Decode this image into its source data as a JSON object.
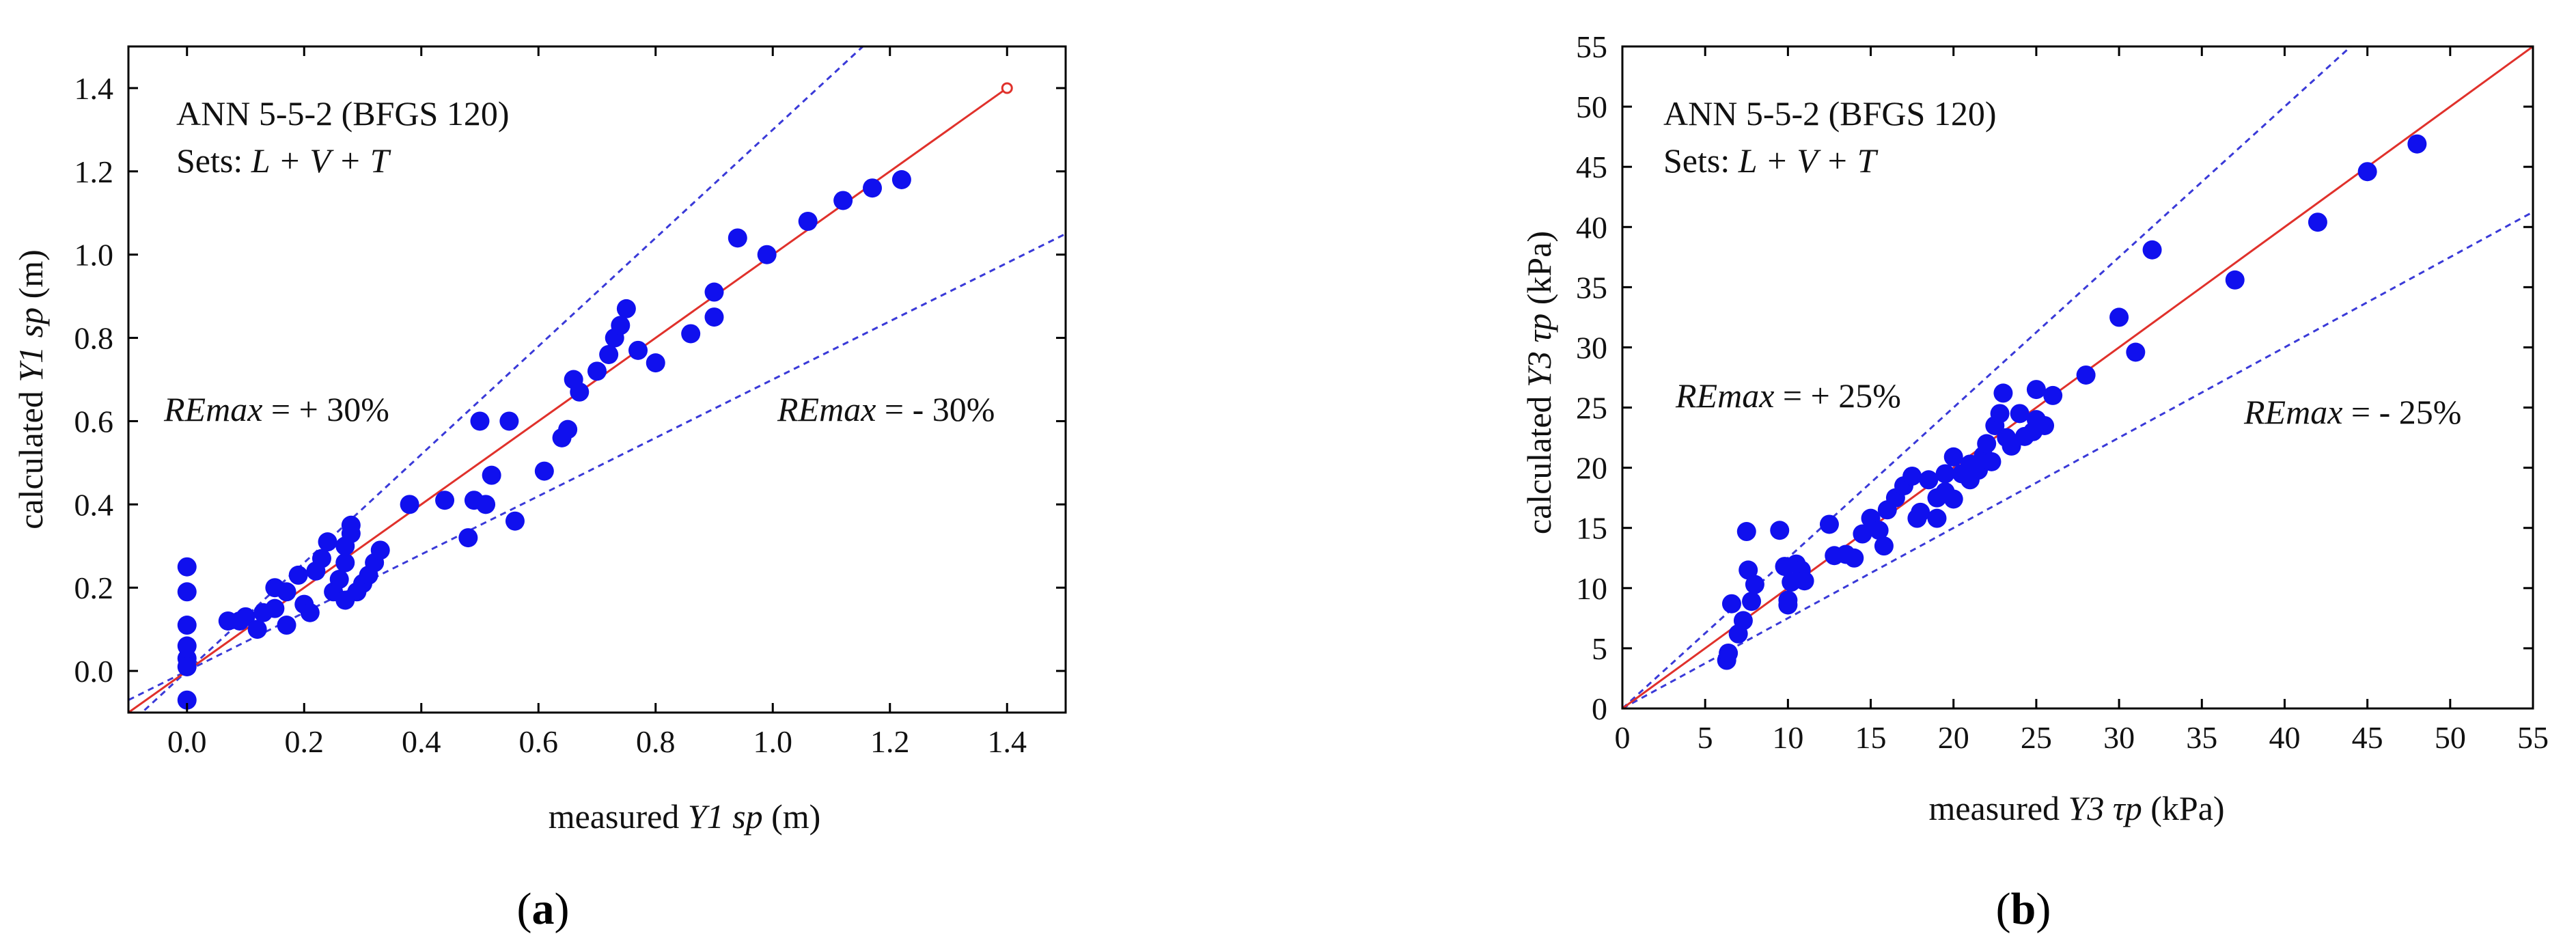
{
  "chart_data": [
    {
      "type": "scatter",
      "panel_label": "a",
      "title": "",
      "annotation": {
        "model": "ANN 5-5-2 (BFGS 120)",
        "sets_prefix": "Sets: ",
        "sets_value": "L + V + T"
      },
      "xlabel": {
        "prefix": "measured ",
        "var": "Y1 sp",
        "unit": " (m)"
      },
      "ylabel": {
        "prefix": "calculated ",
        "var": "Y1 sp",
        "unit": " (m)"
      },
      "xlim": [
        -0.1,
        1.5
      ],
      "ylim": [
        -0.1,
        1.5
      ],
      "xticks": [
        0.0,
        0.2,
        0.4,
        0.6,
        0.8,
        1.0,
        1.2,
        1.4
      ],
      "xtick_labels": [
        "0.0",
        "0.2",
        "0.4",
        "0.6",
        "0.8",
        "1.0",
        "1.2",
        "1.4"
      ],
      "yticks": [
        0.0,
        0.2,
        0.4,
        0.6,
        0.8,
        1.0,
        1.2,
        1.4
      ],
      "ytick_labels": [
        "0.0",
        "0.2",
        "0.4",
        "0.6",
        "0.8",
        "1.0",
        "1.2",
        "1.4"
      ],
      "ideal_line": {
        "from": [
          -0.1,
          -0.1
        ],
        "to": [
          1.4,
          1.4
        ]
      },
      "bounds": {
        "upper_factor": 1.3,
        "lower_factor": 0.7
      },
      "re_labels": {
        "upper": {
          "name": "REmax",
          "value": " = + 30%"
        },
        "lower": {
          "name": "REmax",
          "value": " = - 30%"
        }
      },
      "points": [
        [
          0.0,
          0.25
        ],
        [
          0.0,
          0.19
        ],
        [
          0.0,
          0.11
        ],
        [
          0.0,
          0.06
        ],
        [
          0.0,
          0.03
        ],
        [
          0.0,
          0.01
        ],
        [
          0.0,
          -0.07
        ],
        [
          0.07,
          0.12
        ],
        [
          0.09,
          0.12
        ],
        [
          0.1,
          0.13
        ],
        [
          0.12,
          0.1
        ],
        [
          0.13,
          0.14
        ],
        [
          0.15,
          0.15
        ],
        [
          0.15,
          0.2
        ],
        [
          0.17,
          0.19
        ],
        [
          0.17,
          0.11
        ],
        [
          0.19,
          0.23
        ],
        [
          0.2,
          0.16
        ],
        [
          0.21,
          0.14
        ],
        [
          0.22,
          0.24
        ],
        [
          0.23,
          0.27
        ],
        [
          0.24,
          0.31
        ],
        [
          0.25,
          0.19
        ],
        [
          0.26,
          0.22
        ],
        [
          0.27,
          0.26
        ],
        [
          0.27,
          0.3
        ],
        [
          0.28,
          0.33
        ],
        [
          0.28,
          0.35
        ],
        [
          0.27,
          0.17
        ],
        [
          0.29,
          0.19
        ],
        [
          0.3,
          0.21
        ],
        [
          0.31,
          0.23
        ],
        [
          0.32,
          0.26
        ],
        [
          0.33,
          0.29
        ],
        [
          0.38,
          0.4
        ],
        [
          0.44,
          0.41
        ],
        [
          0.48,
          0.32
        ],
        [
          0.49,
          0.41
        ],
        [
          0.5,
          0.6
        ],
        [
          0.51,
          0.4
        ],
        [
          0.52,
          0.47
        ],
        [
          0.55,
          0.6
        ],
        [
          0.56,
          0.36
        ],
        [
          0.61,
          0.48
        ],
        [
          0.64,
          0.56
        ],
        [
          0.65,
          0.58
        ],
        [
          0.66,
          0.7
        ],
        [
          0.67,
          0.67
        ],
        [
          0.7,
          0.72
        ],
        [
          0.72,
          0.76
        ],
        [
          0.73,
          0.8
        ],
        [
          0.74,
          0.83
        ],
        [
          0.75,
          0.87
        ],
        [
          0.77,
          0.77
        ],
        [
          0.8,
          0.74
        ],
        [
          0.86,
          0.81
        ],
        [
          0.9,
          0.85
        ],
        [
          0.9,
          0.91
        ],
        [
          0.94,
          1.04
        ],
        [
          0.99,
          1.0
        ],
        [
          1.06,
          1.08
        ],
        [
          1.12,
          1.13
        ],
        [
          1.17,
          1.16
        ],
        [
          1.22,
          1.18
        ]
      ]
    },
    {
      "type": "scatter",
      "panel_label": "b",
      "title": "",
      "annotation": {
        "model": "ANN 5-5-2 (BFGS 120)",
        "sets_prefix": "Sets: ",
        "sets_value": "L + V + T"
      },
      "xlabel": {
        "prefix": "measured ",
        "var": "Y3 τp",
        "unit": " (kPa)"
      },
      "ylabel": {
        "prefix": "calculated ",
        "var": "Y3 τp",
        "unit": " (kPa)"
      },
      "xlim": [
        0,
        55
      ],
      "ylim": [
        0,
        55
      ],
      "xticks": [
        0,
        5,
        10,
        15,
        20,
        25,
        30,
        35,
        40,
        45,
        50,
        55
      ],
      "xtick_labels": [
        "0",
        "5",
        "10",
        "15",
        "20",
        "25",
        "30",
        "35",
        "40",
        "45",
        "50",
        "55"
      ],
      "yticks": [
        0,
        5,
        10,
        15,
        20,
        25,
        30,
        35,
        40,
        45,
        50,
        55
      ],
      "ytick_labels": [
        "0",
        "5",
        "10",
        "15",
        "20",
        "25",
        "30",
        "35",
        "40",
        "45",
        "50",
        "55"
      ],
      "ideal_line": {
        "from": [
          0,
          0
        ],
        "to": [
          55,
          55
        ]
      },
      "bounds": {
        "upper_factor": 1.25,
        "lower_factor": 0.75
      },
      "re_labels": {
        "upper": {
          "name": "REmax",
          "value": " = + 25%"
        },
        "lower": {
          "name": "REmax",
          "value": " = - 25%"
        }
      },
      "points": [
        [
          6.3,
          4.0
        ],
        [
          6.4,
          4.6
        ],
        [
          6.6,
          8.7
        ],
        [
          7.0,
          6.2
        ],
        [
          7.3,
          7.3
        ],
        [
          7.5,
          14.7
        ],
        [
          7.6,
          11.5
        ],
        [
          7.8,
          8.9
        ],
        [
          8.0,
          10.3
        ],
        [
          9.5,
          14.8
        ],
        [
          9.8,
          11.8
        ],
        [
          10.0,
          9.0
        ],
        [
          10.0,
          8.6
        ],
        [
          10.2,
          10.5
        ],
        [
          10.5,
          12.0
        ],
        [
          10.8,
          11.5
        ],
        [
          11.0,
          10.6
        ],
        [
          12.5,
          15.3
        ],
        [
          12.8,
          12.7
        ],
        [
          13.5,
          12.8
        ],
        [
          14.0,
          12.5
        ],
        [
          14.5,
          14.5
        ],
        [
          15.0,
          15.8
        ],
        [
          15.5,
          14.8
        ],
        [
          15.8,
          13.5
        ],
        [
          16.0,
          16.5
        ],
        [
          16.5,
          17.5
        ],
        [
          17.0,
          18.5
        ],
        [
          17.5,
          19.3
        ],
        [
          17.8,
          15.8
        ],
        [
          18.0,
          16.3
        ],
        [
          18.5,
          19.0
        ],
        [
          19.0,
          15.8
        ],
        [
          19.0,
          17.5
        ],
        [
          19.5,
          18.0
        ],
        [
          19.5,
          19.5
        ],
        [
          20.0,
          20.9
        ],
        [
          20.0,
          17.4
        ],
        [
          20.5,
          19.5
        ],
        [
          21.0,
          20.3
        ],
        [
          21.0,
          19.0
        ],
        [
          21.5,
          19.8
        ],
        [
          21.8,
          21.0
        ],
        [
          22.0,
          22.0
        ],
        [
          22.3,
          20.5
        ],
        [
          22.5,
          23.5
        ],
        [
          22.8,
          24.5
        ],
        [
          23.0,
          26.2
        ],
        [
          23.2,
          22.5
        ],
        [
          23.5,
          21.8
        ],
        [
          24.0,
          24.5
        ],
        [
          24.3,
          22.6
        ],
        [
          24.8,
          23.0
        ],
        [
          25.0,
          24.0
        ],
        [
          25.0,
          26.5
        ],
        [
          25.5,
          23.5
        ],
        [
          26.0,
          26.0
        ],
        [
          28.0,
          27.7
        ],
        [
          30.0,
          32.5
        ],
        [
          31.0,
          29.6
        ],
        [
          32.0,
          38.1
        ],
        [
          37.0,
          35.6
        ],
        [
          42.0,
          40.4
        ],
        [
          45.0,
          44.6
        ],
        [
          48.0,
          46.9
        ]
      ]
    }
  ]
}
